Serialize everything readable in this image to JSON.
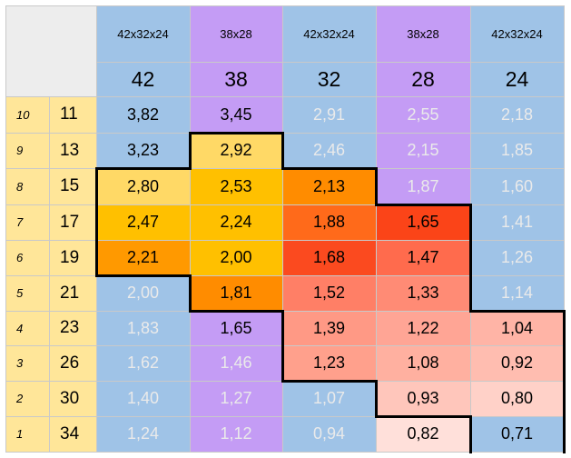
{
  "table": {
    "column_groups": [
      "42x32x24",
      "38x28",
      "42x32x24",
      "38x28",
      "42x32x24"
    ],
    "column_sizes": [
      "42",
      "38",
      "32",
      "28",
      "24"
    ],
    "rows": [
      {
        "index": "10",
        "size": "11",
        "values": [
          "3,82",
          "3,45",
          "2,91",
          "2,55",
          "2,18"
        ]
      },
      {
        "index": "9",
        "size": "13",
        "values": [
          "3,23",
          "2,92",
          "2,46",
          "2,15",
          "1,85"
        ]
      },
      {
        "index": "8",
        "size": "15",
        "values": [
          "2,80",
          "2,53",
          "2,13",
          "1,87",
          "1,60"
        ]
      },
      {
        "index": "7",
        "size": "17",
        "values": [
          "2,47",
          "2,24",
          "1,88",
          "1,65",
          "1,41"
        ]
      },
      {
        "index": "6",
        "size": "19",
        "values": [
          "2,21",
          "2,00",
          "1,68",
          "1,47",
          "1,26"
        ]
      },
      {
        "index": "5",
        "size": "21",
        "values": [
          "2,00",
          "1,81",
          "1,52",
          "1,33",
          "1,14"
        ]
      },
      {
        "index": "4",
        "size": "23",
        "values": [
          "1,83",
          "1,65",
          "1,39",
          "1,22",
          "1,04"
        ]
      },
      {
        "index": "3",
        "size": "26",
        "values": [
          "1,62",
          "1,46",
          "1,23",
          "1,08",
          "0,92"
        ]
      },
      {
        "index": "2",
        "size": "30",
        "values": [
          "1,40",
          "1,27",
          "1,07",
          "0,93",
          "0,80"
        ]
      },
      {
        "index": "1",
        "size": "34",
        "values": [
          "1,24",
          "1,12",
          "0,94",
          "0,82",
          "0,71"
        ]
      }
    ],
    "cell_colors": [
      [
        "#9fc3e7",
        "#c49cf5",
        "#9fc3e7",
        "#c49cf5",
        "#9fc3e7"
      ],
      [
        "#9fc3e7",
        "#ffd966",
        "#9fc3e7",
        "#c49cf5",
        "#9fc3e7"
      ],
      [
        "#ffd966",
        "#ffc000",
        "#ff8c00",
        "#c49cf5",
        "#9fc3e7"
      ],
      [
        "#ffc000",
        "#ffc000",
        "#ff6a1a",
        "#fb4418",
        "#9fc3e7"
      ],
      [
        "#ff9900",
        "#ffc000",
        "#fb4a1f",
        "#ff6b4d",
        "#9fc3e7"
      ],
      [
        "#9fc3e7",
        "#ff8c00",
        "#ff7f66",
        "#ff8b75",
        "#9fc3e7"
      ],
      [
        "#9fc3e7",
        "#c49cf5",
        "#ff9985",
        "#ffa595",
        "#ffb4a6"
      ],
      [
        "#9fc3e7",
        "#c49cf5",
        "#ffa08c",
        "#ffb0a0",
        "#ffbdb0"
      ],
      [
        "#9fc3e7",
        "#c49cf5",
        "#9fc3e7",
        "#ffc6bb",
        "#ffd1c8"
      ],
      [
        "#9fc3e7",
        "#c49cf5",
        "#9fc3e7",
        "#ffe0da",
        "#9fc3e7"
      ]
    ],
    "text_colors": [
      [
        "#000000",
        "#000000",
        "#eaeaea",
        "#eaeaea",
        "#eaeaea"
      ],
      [
        "#000000",
        "#000000",
        "#eaeaea",
        "#eaeaea",
        "#eaeaea"
      ],
      [
        "#000000",
        "#000000",
        "#000000",
        "#eaeaea",
        "#eaeaea"
      ],
      [
        "#000000",
        "#000000",
        "#000000",
        "#000000",
        "#eaeaea"
      ],
      [
        "#000000",
        "#000000",
        "#000000",
        "#000000",
        "#eaeaea"
      ],
      [
        "#eaeaea",
        "#000000",
        "#000000",
        "#000000",
        "#eaeaea"
      ],
      [
        "#eaeaea",
        "#000000",
        "#000000",
        "#000000",
        "#000000"
      ],
      [
        "#eaeaea",
        "#eaeaea",
        "#000000",
        "#000000",
        "#000000"
      ],
      [
        "#eaeaea",
        "#eaeaea",
        "#eaeaea",
        "#000000",
        "#000000"
      ],
      [
        "#eaeaea",
        "#eaeaea",
        "#eaeaea",
        "#000000",
        "#000000"
      ]
    ],
    "colors": {
      "corner": "#ededed",
      "row_header": "#ffe699",
      "group_blue": "#9fc3e7",
      "group_purple": "#c49cf5",
      "gridline": "#c9c9c9",
      "region_border": "#000000"
    }
  }
}
